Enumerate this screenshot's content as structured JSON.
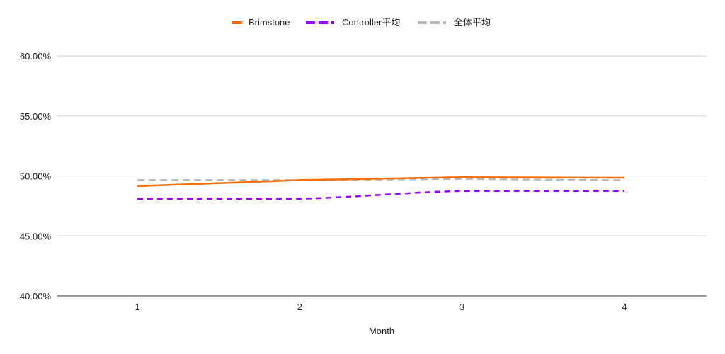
{
  "chart_data": {
    "type": "line",
    "title": "",
    "xlabel": "Month",
    "ylabel": "",
    "x": [
      1,
      2,
      3,
      4
    ],
    "x_tick_labels": [
      "1",
      "2",
      "3",
      "4"
    ],
    "ylim": [
      40,
      60
    ],
    "y_ticks": [
      40,
      45,
      50,
      55,
      60
    ],
    "y_tick_labels": [
      "40.00%",
      "45.00%",
      "50.00%",
      "55.00%",
      "60.00%"
    ],
    "grid": true,
    "legend_position": "top-center",
    "series": [
      {
        "name": "Brimstone",
        "values": [
          49.15,
          49.65,
          49.9,
          49.85
        ],
        "color": "#ff6d01",
        "dash": "solid",
        "curve": "straight"
      },
      {
        "name": "Controller平均",
        "values": [
          48.1,
          48.1,
          48.75,
          48.75
        ],
        "color": "#9900ff",
        "dash": "dashed",
        "curve": "smooth"
      },
      {
        "name": "全体平均",
        "values": [
          49.65,
          49.65,
          49.75,
          49.65
        ],
        "color": "#b7b7b7",
        "dash": "dashed",
        "curve": "straight"
      }
    ]
  }
}
